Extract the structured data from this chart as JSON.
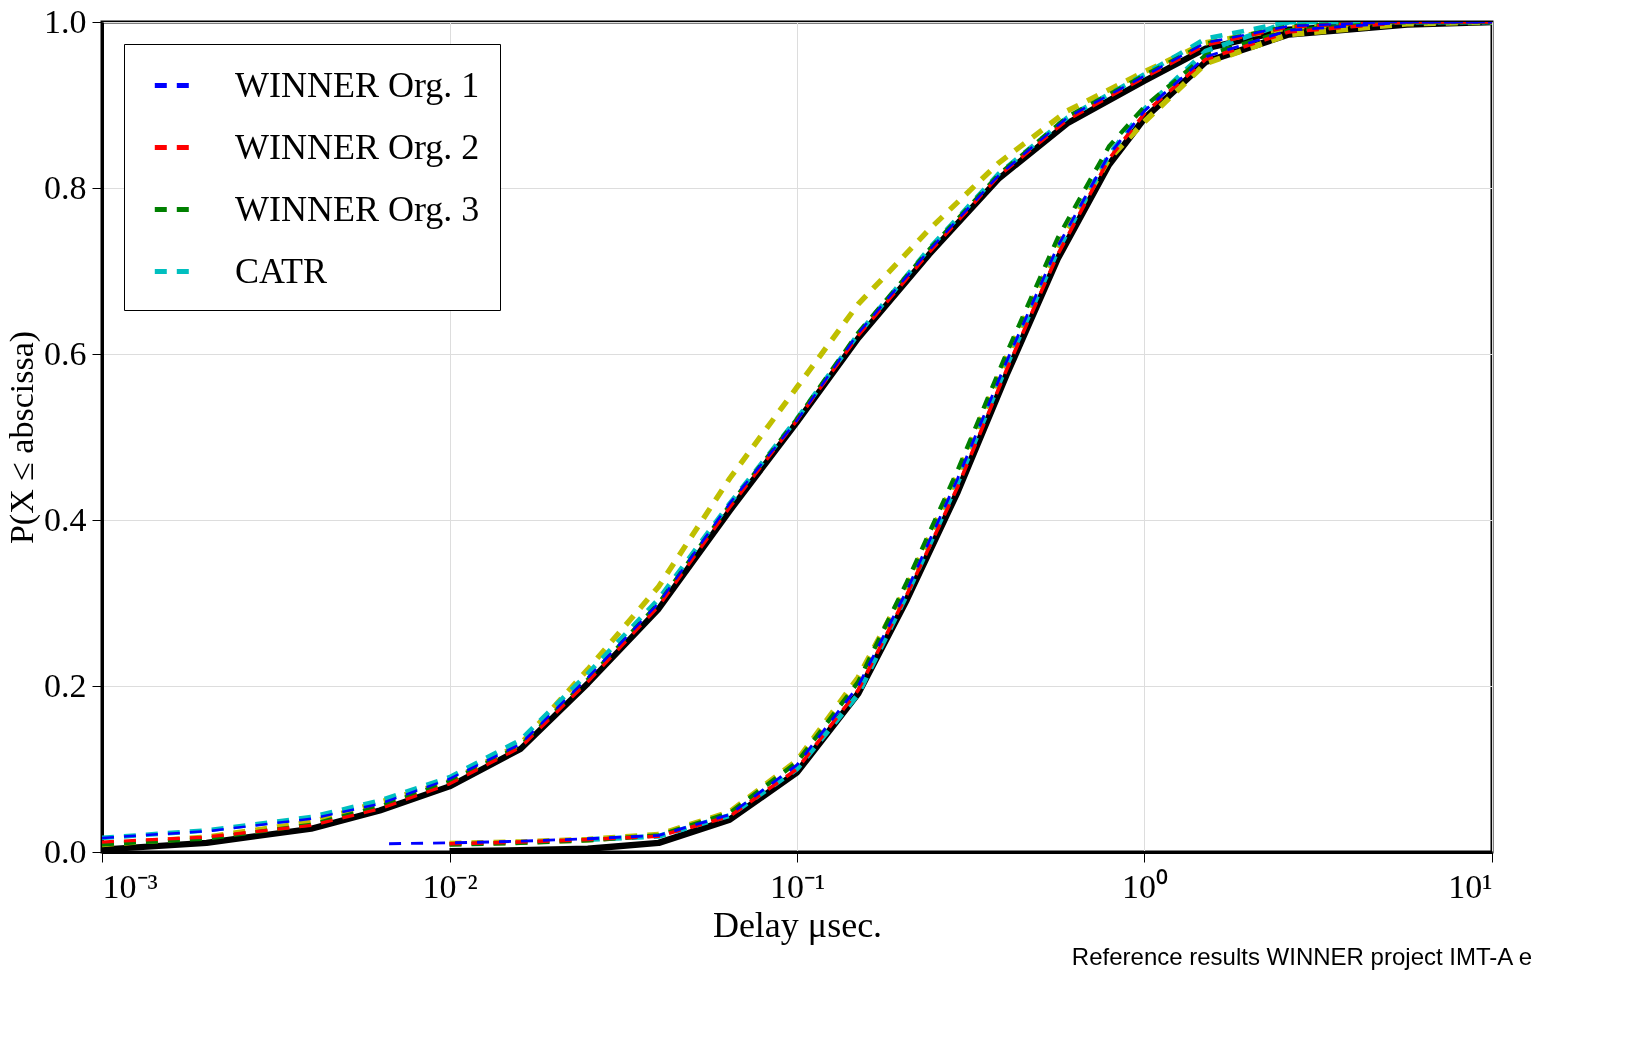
{
  "chart_data": {
    "type": "line",
    "xlabel": "Delay μsec.",
    "ylabel": "P(X ≤ abscissa)",
    "annotations": [
      "Reference results WINNER project IMT-A e"
    ],
    "log": "x",
    "grid": true,
    "legend": "top left",
    "xlim": [
      0.001,
      10
    ],
    "ylim": [
      0,
      1
    ],
    "xticks": [
      {
        "value": 0.001,
        "label": "10⁻³"
      },
      {
        "value": 0.01,
        "label": "10⁻²"
      },
      {
        "value": 0.1,
        "label": "10⁻¹"
      },
      {
        "value": 1,
        "label": "10⁰"
      },
      {
        "value": 10,
        "label": "10¹"
      }
    ],
    "yticks": [
      {
        "value": 0,
        "label": "0.0"
      },
      {
        "value": 0.2,
        "label": "0.2"
      },
      {
        "value": 0.4,
        "label": "0.4"
      },
      {
        "value": 0.6,
        "label": "0.6"
      },
      {
        "value": 0.8,
        "label": "0.8"
      },
      {
        "value": 1,
        "label": "1.0"
      }
    ],
    "series": [
      {
        "name": "WINNER Org. 1",
        "color": "#0000ff",
        "line_style": "dashed",
        "x": [
          0.001,
          0.002,
          0.004,
          0.0063,
          0.01,
          0.016,
          0.025,
          0.04,
          0.064,
          0.1,
          0.15,
          0.24,
          0.38,
          0.6,
          1,
          1.5,
          2.6,
          5,
          10
        ],
        "values": [
          0.017,
          0.025,
          0.04,
          0.058,
          0.088,
          0.13,
          0.21,
          0.3,
          0.42,
          0.52,
          0.625,
          0.725,
          0.815,
          0.885,
          0.935,
          0.975,
          0.995,
          1.0,
          1.0
        ]
      },
      {
        "color": "#0000ff",
        "line_style": "dashed",
        "x": [
          0.0067,
          0.01,
          0.016,
          0.025,
          0.04,
          0.064,
          0.1,
          0.15,
          0.207,
          0.29,
          0.4,
          0.563,
          0.79,
          1,
          1.5,
          2.6,
          5.7,
          10
        ],
        "values": [
          0.01,
          0.011,
          0.013,
          0.016,
          0.02,
          0.045,
          0.105,
          0.2,
          0.315,
          0.45,
          0.59,
          0.73,
          0.84,
          0.893,
          0.958,
          0.99,
          1.0,
          1.0
        ]
      },
      {
        "name": "WINNER Org. 2",
        "color": "#ff0000",
        "line_style": "dashed",
        "x": [
          0.001,
          0.002,
          0.004,
          0.0063,
          0.01,
          0.016,
          0.025,
          0.04,
          0.064,
          0.1,
          0.15,
          0.24,
          0.38,
          0.6,
          1,
          1.5,
          2.6,
          5,
          10
        ],
        "values": [
          0.012,
          0.018,
          0.032,
          0.052,
          0.082,
          0.126,
          0.205,
          0.296,
          0.415,
          0.52,
          0.622,
          0.722,
          0.814,
          0.882,
          0.933,
          0.972,
          0.994,
          1.0,
          1.0
        ]
      },
      {
        "color": "#ff0000",
        "line_style": "dashed",
        "x": [
          0.01,
          0.016,
          0.025,
          0.04,
          0.064,
          0.1,
          0.15,
          0.207,
          0.29,
          0.4,
          0.563,
          0.79,
          1,
          1.5,
          2.6,
          5.7,
          10
        ],
        "values": [
          0.01,
          0.012,
          0.015,
          0.019,
          0.043,
          0.1,
          0.195,
          0.31,
          0.44,
          0.58,
          0.72,
          0.835,
          0.89,
          0.955,
          0.988,
          1.0,
          1.0
        ]
      },
      {
        "name": "WINNER Org. 3",
        "color": "#008000",
        "line_style": "dashed",
        "x": [
          0.001,
          0.002,
          0.004,
          0.0063,
          0.01,
          0.016,
          0.025,
          0.04,
          0.064,
          0.1,
          0.15,
          0.24,
          0.38,
          0.6,
          1,
          1.5,
          2.6,
          5,
          10
        ],
        "values": [
          0.009,
          0.016,
          0.033,
          0.055,
          0.085,
          0.128,
          0.208,
          0.3,
          0.418,
          0.522,
          0.626,
          0.726,
          0.816,
          0.886,
          0.936,
          0.974,
          0.995,
          1.0,
          1.0
        ]
      },
      {
        "color": "#008000",
        "line_style": "dashed",
        "x": [
          0.01,
          0.016,
          0.025,
          0.04,
          0.064,
          0.1,
          0.15,
          0.207,
          0.29,
          0.4,
          0.563,
          0.79,
          1,
          1.5,
          2.6,
          5.7,
          10
        ],
        "values": [
          0.009,
          0.011,
          0.014,
          0.02,
          0.047,
          0.108,
          0.205,
          0.325,
          0.46,
          0.6,
          0.74,
          0.85,
          0.898,
          0.96,
          0.99,
          1.0,
          1.0
        ]
      },
      {
        "name": "CATR",
        "color": "#00bfbf",
        "line_style": "dashed",
        "x": [
          0.001,
          0.002,
          0.004,
          0.0063,
          0.01,
          0.016,
          0.025,
          0.04,
          0.064,
          0.1,
          0.15,
          0.24,
          0.38,
          0.6,
          1,
          1.5,
          2.6,
          5,
          10
        ],
        "values": [
          0.017,
          0.026,
          0.042,
          0.062,
          0.09,
          0.135,
          0.215,
          0.305,
          0.42,
          0.522,
          0.624,
          0.727,
          0.817,
          0.885,
          0.937,
          0.98,
          1.0,
          1.0,
          1.0
        ]
      },
      {
        "color": "#00bfbf",
        "line_style": "dashed",
        "x": [
          0.025,
          0.04,
          0.064,
          0.1,
          0.15,
          0.207,
          0.29,
          0.4,
          0.563,
          0.79,
          1,
          1.5,
          2.6,
          5.7,
          10
        ],
        "values": [
          0.015,
          0.019,
          0.044,
          0.1,
          0.19,
          0.31,
          0.445,
          0.585,
          0.725,
          0.84,
          0.895,
          0.965,
          1.0,
          1.0,
          1.0
        ]
      },
      {
        "color": "#bfbf00",
        "line_style": "dashed",
        "x": [
          0.001,
          0.002,
          0.004,
          0.0063,
          0.01,
          0.016,
          0.025,
          0.04,
          0.064,
          0.1,
          0.15,
          0.24,
          0.38,
          0.6,
          1,
          1.5,
          2.6,
          5,
          10
        ],
        "values": [
          0.009,
          0.018,
          0.036,
          0.06,
          0.085,
          0.13,
          0.22,
          0.32,
          0.45,
          0.56,
          0.66,
          0.75,
          0.83,
          0.893,
          0.94,
          0.975,
          0.993,
          1.0,
          1.0
        ]
      },
      {
        "color": "#bfbf00",
        "line_style": "dashed",
        "x": [
          0.01,
          0.016,
          0.025,
          0.04,
          0.064,
          0.1,
          0.15,
          0.207,
          0.29,
          0.4,
          0.563,
          0.79,
          1,
          1.5,
          2.6,
          5.7,
          10
        ],
        "values": [
          0.01,
          0.012,
          0.015,
          0.021,
          0.048,
          0.11,
          0.21,
          0.32,
          0.455,
          0.595,
          0.73,
          0.835,
          0.88,
          0.95,
          0.985,
          0.998,
          1.0
        ]
      },
      {
        "color": "#000000",
        "line_style": "solid",
        "x": [
          0.001,
          0.002,
          0.004,
          0.0063,
          0.01,
          0.016,
          0.025,
          0.04,
          0.064,
          0.1,
          0.15,
          0.24,
          0.38,
          0.6,
          1,
          1.5,
          2.6,
          5,
          10
        ],
        "values": [
          0.003,
          0.011,
          0.028,
          0.05,
          0.079,
          0.124,
          0.203,
          0.293,
          0.411,
          0.518,
          0.619,
          0.72,
          0.811,
          0.878,
          0.929,
          0.968,
          0.991,
          0.998,
          1.0
        ]
      },
      {
        "color": "#000000",
        "line_style": "solid",
        "x": [
          0.01,
          0.016,
          0.025,
          0.04,
          0.064,
          0.1,
          0.15,
          0.207,
          0.29,
          0.4,
          0.563,
          0.79,
          1,
          1.5,
          2.6,
          5.7,
          10
        ],
        "values": [
          0.001,
          0.002,
          0.004,
          0.011,
          0.039,
          0.096,
          0.191,
          0.304,
          0.434,
          0.574,
          0.715,
          0.828,
          0.884,
          0.952,
          0.985,
          0.997,
          1.0
        ]
      }
    ]
  }
}
